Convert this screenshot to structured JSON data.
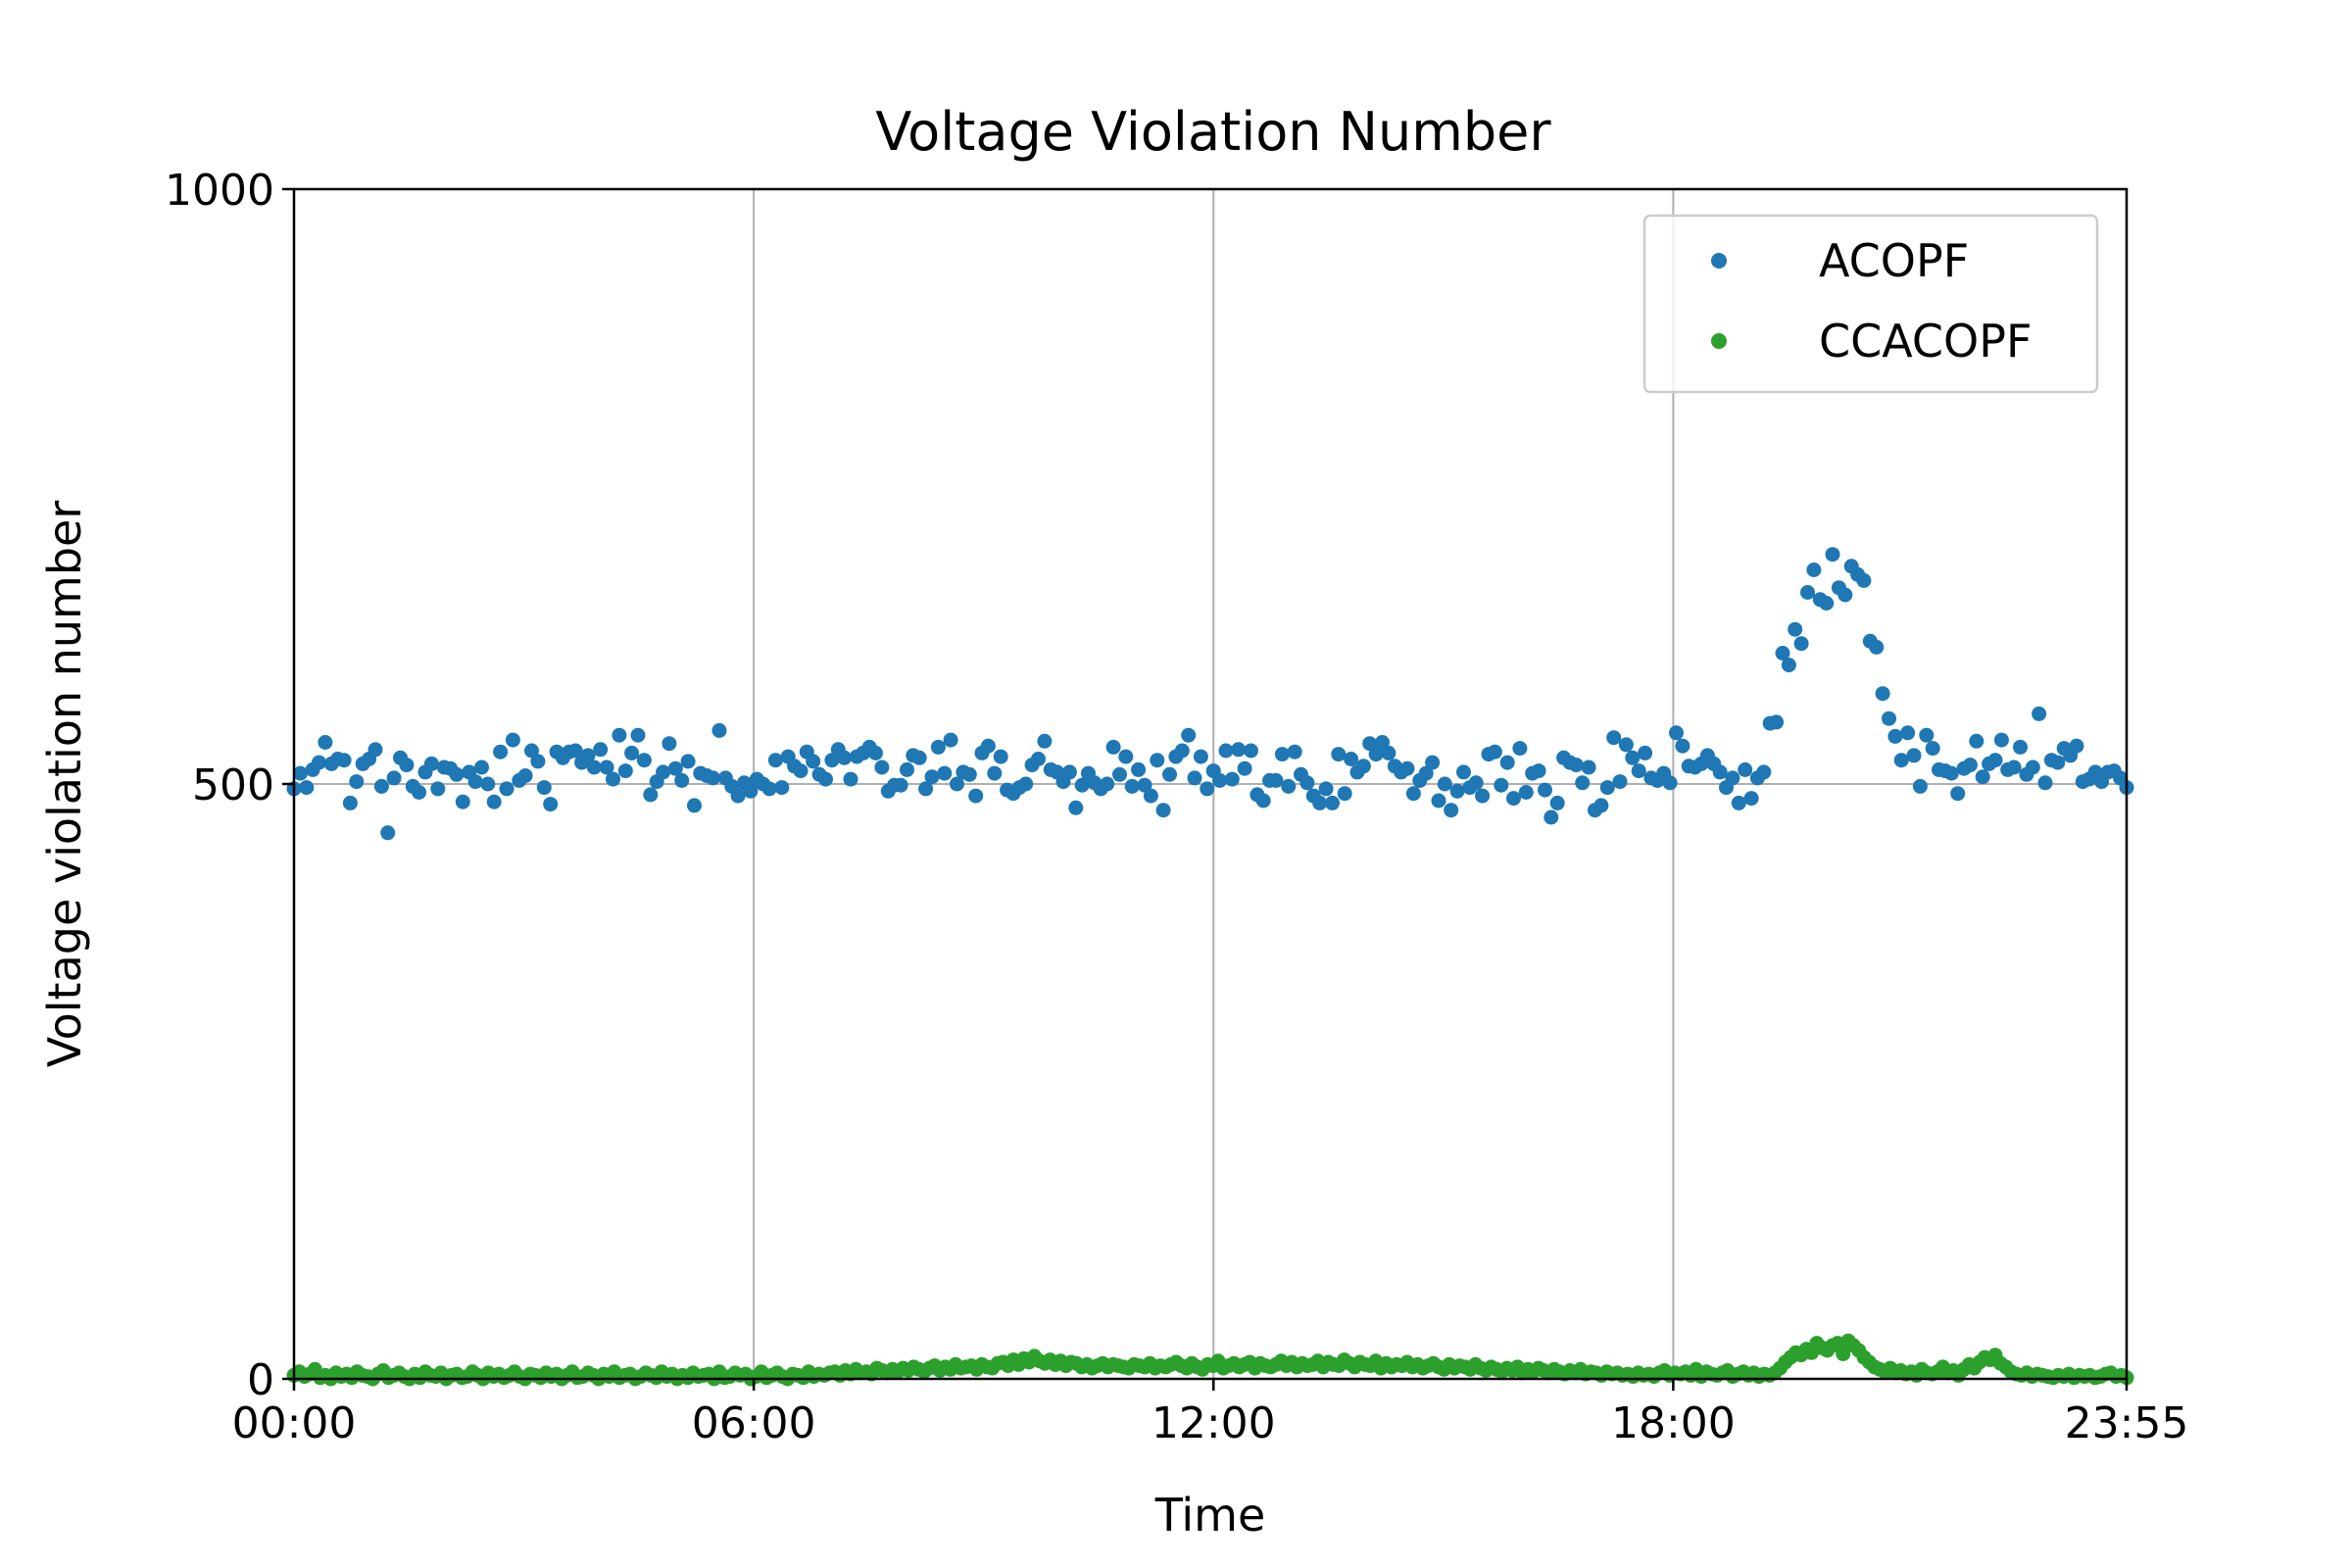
{
  "chart_data": {
    "type": "scatter",
    "title": "Voltage Violation Number",
    "xlabel": "Time",
    "ylabel": "Voltage violation number",
    "x_unit": "minutes",
    "x_ticks": [
      {
        "value": 0,
        "label": "00:00"
      },
      {
        "value": 360,
        "label": "06:00"
      },
      {
        "value": 720,
        "label": "12:00"
      },
      {
        "value": 1080,
        "label": "18:00"
      },
      {
        "value": 1435,
        "label": "23:55"
      }
    ],
    "xlim": [
      0,
      1435
    ],
    "ylim": [
      0,
      1000
    ],
    "y_ticks": [
      0,
      500,
      1000
    ],
    "grid": true,
    "legend": "top-right",
    "colors": {
      "ACOPF": "#1f77b4",
      "CCACOPF": "#2ca02c"
    },
    "series": [
      {
        "name": "ACOPF",
        "color": "#1f77b4",
        "values": [
          496,
          509,
          497,
          512,
          518,
          535,
          517,
          521,
          520,
          484,
          502,
          517,
          521,
          529,
          498,
          459,
          505,
          522,
          516,
          498,
          493,
          510,
          517,
          496,
          514,
          513,
          508,
          485,
          510,
          502,
          514,
          500,
          485,
          527,
          496,
          537,
          503,
          507,
          528,
          519,
          497,
          483,
          527,
          522,
          527,
          528,
          518,
          524,
          514,
          529,
          514,
          504,
          541,
          511,
          526,
          541,
          520,
          491,
          502,
          510,
          534,
          513,
          503,
          519,
          482,
          509,
          507,
          505,
          545,
          505,
          498,
          490,
          501,
          494,
          504,
          500,
          496,
          520,
          497,
          523,
          515,
          511,
          527,
          519,
          508,
          504,
          520,
          529,
          522,
          504,
          523,
          526,
          531,
          526,
          514,
          494,
          499,
          499,
          512,
          524,
          522,
          496,
          506,
          531,
          509,
          537,
          500,
          510,
          508,
          490,
          526,
          532,
          509,
          523,
          495,
          492,
          497,
          500,
          516,
          521,
          536,
          512,
          510,
          502,
          510,
          480,
          499,
          509,
          501,
          496,
          500,
          531,
          508,
          523,
          498,
          512,
          499,
          490,
          520,
          478,
          508,
          523,
          528,
          541,
          505,
          523,
          496,
          511,
          503,
          528,
          504,
          529,
          513,
          528,
          491,
          486,
          503,
          503,
          525,
          498,
          527,
          508,
          501,
          490,
          484,
          496,
          484,
          525,
          492,
          521,
          510,
          515,
          534,
          525,
          535,
          526,
          515,
          510,
          513,
          492,
          503,
          509,
          518,
          486,
          500,
          478,
          494,
          510,
          497,
          501,
          490,
          525,
          527,
          499,
          518,
          488,
          530,
          493,
          509,
          511,
          495,
          472,
          484,
          522,
          518,
          516,
          501,
          514,
          478,
          482,
          497,
          539,
          502,
          533,
          522,
          511,
          526,
          505,
          503,
          509,
          501,
          543,
          532,
          515,
          514,
          517,
          524,
          517,
          510,
          497,
          505,
          484,
          512,
          488,
          505,
          510,
          551,
          552,
          610,
          600,
          630,
          618,
          661,
          680,
          655,
          652,
          693,
          665,
          659,
          683,
          676,
          671,
          620,
          615,
          576,
          555,
          540,
          520,
          543,
          524,
          498,
          541,
          530,
          512,
          511,
          509,
          492,
          513,
          516,
          536,
          506,
          517,
          520,
          537,
          512,
          514,
          531,
          508,
          514,
          559,
          501,
          520,
          518,
          530,
          524,
          532,
          502,
          504,
          510,
          502,
          510,
          511,
          505,
          497
        ]
      },
      {
        "name": "CCACOPF",
        "color": "#2ca02c",
        "values": [
          3,
          6,
          2,
          4,
          8,
          1,
          3,
          0,
          5,
          2,
          4,
          1,
          6,
          3,
          2,
          0,
          4,
          7,
          1,
          3,
          5,
          2,
          0,
          4,
          1,
          6,
          3,
          2,
          5,
          0,
          3,
          4,
          1,
          2,
          6,
          3,
          0,
          5,
          2,
          4,
          1,
          3,
          6,
          2,
          0,
          4,
          3,
          1,
          5,
          2,
          4,
          0,
          3,
          6,
          1,
          2,
          5,
          3,
          0,
          4,
          2,
          6,
          1,
          3,
          4,
          0,
          2,
          5,
          3,
          1,
          6,
          2,
          4,
          0,
          3,
          1,
          5,
          2,
          3,
          4,
          0,
          6,
          1,
          2,
          5,
          3,
          4,
          0,
          2,
          6,
          1,
          3,
          5,
          2,
          0,
          4,
          3,
          1,
          6,
          2,
          4,
          3,
          5,
          6,
          3,
          7,
          4,
          8,
          5,
          6,
          4,
          9,
          7,
          5,
          8,
          6,
          9,
          7,
          10,
          8,
          6,
          9,
          11,
          7,
          10,
          8,
          12,
          9,
          10,
          11,
          8,
          12,
          10,
          9,
          13,
          14,
          11,
          16,
          12,
          17,
          14,
          19,
          15,
          13,
          16,
          12,
          15,
          11,
          14,
          13,
          10,
          12,
          9,
          11,
          13,
          10,
          12,
          11,
          10,
          9,
          12,
          11,
          10,
          13,
          9,
          11,
          10,
          12,
          14,
          11,
          9,
          13,
          10,
          8,
          12,
          11,
          15,
          9,
          11,
          13,
          10,
          12,
          14,
          9,
          13,
          11,
          10,
          12,
          15,
          11,
          14,
          10,
          13,
          11,
          12,
          15,
          10,
          14,
          12,
          11,
          16,
          13,
          10,
          14,
          12,
          11,
          15,
          9,
          13,
          10,
          12,
          11,
          14,
          10,
          12,
          9,
          11,
          13,
          10,
          8,
          12,
          9,
          11,
          10,
          8,
          12,
          9,
          7,
          10,
          8,
          6,
          9,
          7,
          10,
          5,
          8,
          6,
          9,
          7,
          5,
          8,
          6,
          4,
          7,
          5,
          8,
          4,
          6,
          5,
          3,
          6,
          4,
          5,
          3,
          4,
          2,
          5,
          3,
          4,
          2,
          5,
          7,
          3,
          5,
          4,
          6,
          3,
          8,
          2,
          6,
          4,
          3,
          5,
          7,
          2,
          4,
          6,
          3,
          5,
          2,
          4,
          3,
          5,
          9,
          14,
          18,
          22,
          20,
          25,
          22,
          30,
          26,
          24,
          28,
          30,
          21,
          32,
          28,
          24,
          18,
          14,
          10,
          8,
          6,
          9,
          5,
          7,
          4,
          6,
          3,
          8,
          5,
          4,
          6,
          10,
          5,
          7,
          3,
          8,
          12,
          9,
          14,
          18,
          16,
          20,
          13,
          10,
          6,
          4,
          3,
          5,
          2,
          4,
          3,
          2,
          1,
          3,
          2,
          4,
          1,
          3,
          2,
          3,
          1,
          2,
          4,
          5,
          2,
          3,
          1
        ]
      }
    ]
  }
}
